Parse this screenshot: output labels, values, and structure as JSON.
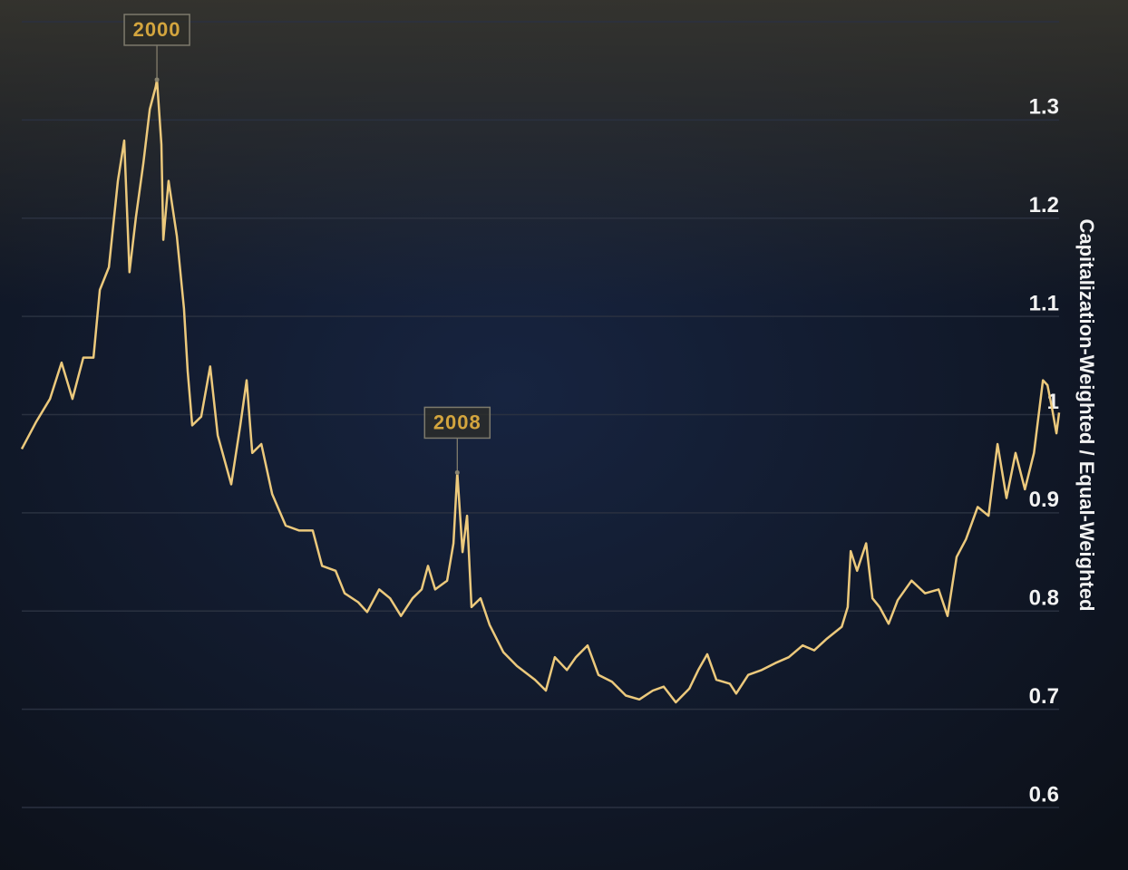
{
  "chart_data": {
    "type": "line",
    "y_label": "Capitalization-Weighted / Equal-Weighted",
    "xlim": [
      1996.4,
      2024.03
    ],
    "ylim": [
      0.6,
      1.4
    ],
    "yticks": [
      0.6,
      0.7,
      0.8,
      0.9,
      1,
      1.1,
      1.2,
      1.3
    ],
    "grid": true,
    "series": [
      {
        "color": "#ecc97c",
        "x": [
          1996.4,
          1996.79,
          1997.15,
          1997.46,
          1997.75,
          1998.04,
          1998.31,
          1998.48,
          1998.72,
          1998.96,
          1999.13,
          1999.27,
          1999.44,
          1999.64,
          1999.81,
          1999.97,
          2000.0,
          2000.12,
          2000.17,
          2000.31,
          2000.53,
          2000.72,
          2000.82,
          2000.94,
          2001.18,
          2001.42,
          2001.62,
          2001.98,
          2002.22,
          2002.39,
          2002.54,
          2002.78,
          2003.07,
          2003.43,
          2003.79,
          2004.15,
          2004.4,
          2004.76,
          2005.0,
          2005.36,
          2005.6,
          2005.92,
          2006.21,
          2006.5,
          2006.81,
          2007.05,
          2007.22,
          2007.41,
          2007.73,
          2007.9,
          2008.0,
          2008.14,
          2008.26,
          2008.38,
          2008.62,
          2008.86,
          2009.23,
          2009.59,
          2010.07,
          2010.36,
          2010.6,
          2010.92,
          2011.16,
          2011.47,
          2011.76,
          2012.12,
          2012.49,
          2012.85,
          2013.21,
          2013.5,
          2013.82,
          2014.18,
          2014.42,
          2014.66,
          2014.9,
          2015.26,
          2015.43,
          2015.75,
          2016.11,
          2016.47,
          2016.83,
          2017.2,
          2017.51,
          2017.85,
          2018.24,
          2018.4,
          2018.48,
          2018.65,
          2018.89,
          2019.06,
          2019.25,
          2019.49,
          2019.73,
          2020.1,
          2020.46,
          2020.82,
          2021.06,
          2021.3,
          2021.55,
          2021.86,
          2022.15,
          2022.39,
          2022.63,
          2022.87,
          2023.12,
          2023.36,
          2023.6,
          2023.72,
          2023.84,
          2023.96,
          2024.03
        ],
        "values": [
          0.965,
          0.993,
          1.016,
          1.053,
          1.016,
          1.058,
          1.058,
          1.127,
          1.15,
          1.238,
          1.279,
          1.145,
          1.201,
          1.256,
          1.311,
          1.334,
          1.341,
          1.275,
          1.178,
          1.238,
          1.182,
          1.108,
          1.044,
          0.989,
          0.998,
          1.049,
          0.979,
          0.929,
          0.989,
          1.035,
          0.961,
          0.97,
          0.919,
          0.887,
          0.882,
          0.882,
          0.846,
          0.841,
          0.818,
          0.809,
          0.799,
          0.822,
          0.813,
          0.795,
          0.813,
          0.822,
          0.846,
          0.822,
          0.831,
          0.869,
          0.941,
          0.86,
          0.897,
          0.804,
          0.813,
          0.786,
          0.758,
          0.744,
          0.73,
          0.719,
          0.753,
          0.74,
          0.753,
          0.765,
          0.735,
          0.728,
          0.714,
          0.71,
          0.719,
          0.723,
          0.707,
          0.721,
          0.74,
          0.756,
          0.73,
          0.726,
          0.716,
          0.735,
          0.74,
          0.747,
          0.753,
          0.765,
          0.76,
          0.772,
          0.784,
          0.804,
          0.861,
          0.841,
          0.869,
          0.813,
          0.804,
          0.787,
          0.811,
          0.831,
          0.818,
          0.822,
          0.795,
          0.855,
          0.873,
          0.906,
          0.897,
          0.97,
          0.915,
          0.961,
          0.924,
          0.961,
          1.035,
          1.03,
          1.007,
          0.981,
          1.002
        ]
      }
    ],
    "annotations": [
      {
        "label": "2000",
        "x": 2000,
        "y": 1.341
      },
      {
        "label": "2008",
        "x": 2008,
        "y": 0.941
      }
    ]
  }
}
